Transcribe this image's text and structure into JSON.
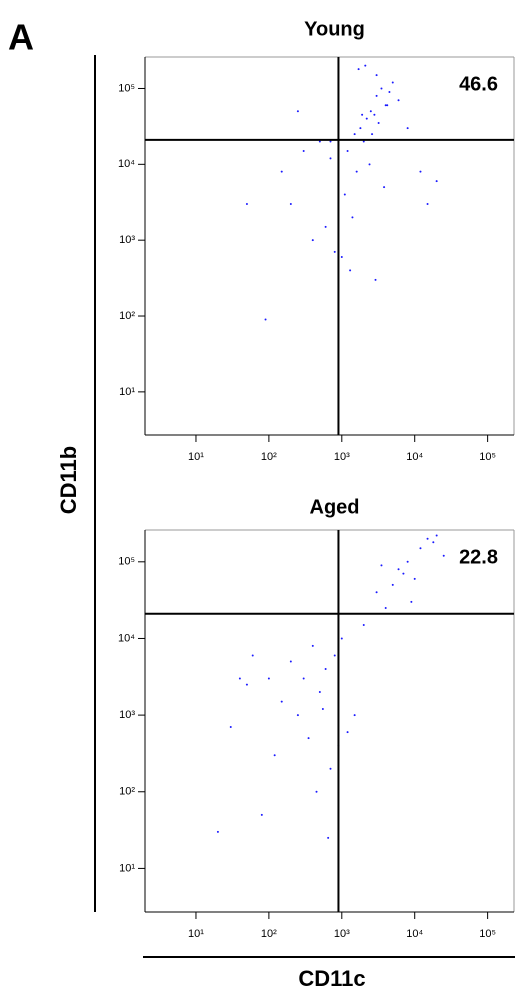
{
  "panel_label": "A",
  "y_label": "CD11b",
  "x_label": "CD11c",
  "chart_data": [
    {
      "type": "scatter",
      "title": "Young",
      "annotation": "46.6",
      "xscale": "log",
      "yscale": "log",
      "color": "#1a1aff",
      "xlim": [
        2,
        230000
      ],
      "ylim": [
        2.7,
        260000
      ],
      "xticks": [
        {
          "value": 10,
          "label": "10¹"
        },
        {
          "value": 100,
          "label": "10²"
        },
        {
          "value": 1000,
          "label": "10³"
        },
        {
          "value": 10000,
          "label": "10⁴"
        },
        {
          "value": 100000,
          "label": "10⁵"
        }
      ],
      "yticks": [
        {
          "value": 10,
          "label": "10¹"
        },
        {
          "value": 100,
          "label": "10²"
        },
        {
          "value": 1000,
          "label": "10³"
        },
        {
          "value": 10000,
          "label": "10⁴"
        },
        {
          "value": 100000,
          "label": "10⁵"
        }
      ],
      "gate": {
        "x": 900,
        "y": 21000
      },
      "x": [
        2500,
        3000,
        1800,
        4000,
        2200,
        3500,
        5000,
        1500,
        2800,
        6000,
        1200,
        2000,
        3200,
        4500,
        900,
        700,
        1600,
        2400,
        3800,
        8000,
        500,
        300,
        1100,
        2600,
        1400,
        600,
        200,
        150,
        400,
        1000,
        12000,
        20000,
        3000,
        1700,
        2100,
        50,
        90,
        800,
        1300,
        2900,
        4200,
        700,
        1900,
        250,
        15000
      ],
      "y": [
        50000,
        80000,
        30000,
        60000,
        40000,
        100000,
        120000,
        25000,
        45000,
        70000,
        15000,
        20000,
        35000,
        90000,
        18000,
        12000,
        8000,
        10000,
        5000,
        30000,
        20000,
        15000,
        4000,
        25000,
        2000,
        1500,
        3000,
        8000,
        1000,
        600,
        8000,
        6000,
        150000,
        180000,
        200000,
        3000,
        90,
        700,
        400,
        300,
        60000,
        20000,
        45000,
        50000,
        3000
      ]
    },
    {
      "type": "scatter",
      "title": "Aged",
      "annotation": "22.8",
      "xscale": "log",
      "yscale": "log",
      "color": "#1a1aff",
      "xlim": [
        2,
        230000
      ],
      "ylim": [
        2.7,
        260000
      ],
      "xticks": [
        {
          "value": 10,
          "label": "10¹"
        },
        {
          "value": 100,
          "label": "10²"
        },
        {
          "value": 1000,
          "label": "10³"
        },
        {
          "value": 10000,
          "label": "10⁴"
        },
        {
          "value": 100000,
          "label": "10⁵"
        }
      ],
      "yticks": [
        {
          "value": 10,
          "label": "10¹"
        },
        {
          "value": 100,
          "label": "10²"
        },
        {
          "value": 1000,
          "label": "10³"
        },
        {
          "value": 10000,
          "label": "10⁴"
        },
        {
          "value": 100000,
          "label": "10⁵"
        }
      ],
      "gate": {
        "x": 900,
        "y": 21000
      },
      "x": [
        8000,
        12000,
        15000,
        20000,
        10000,
        5000,
        6000,
        25000,
        3000,
        18000,
        9000,
        4000,
        7000,
        2000,
        300,
        200,
        500,
        400,
        150,
        800,
        600,
        100,
        250,
        1000,
        350,
        700,
        50,
        30,
        60,
        1500,
        120,
        450,
        900,
        80,
        20,
        550,
        40,
        3500,
        1200,
        650
      ],
      "y": [
        100000,
        150000,
        200000,
        220000,
        60000,
        50000,
        80000,
        120000,
        40000,
        180000,
        30000,
        25000,
        70000,
        15000,
        3000,
        5000,
        2000,
        8000,
        1500,
        6000,
        4000,
        3000,
        1000,
        10000,
        500,
        200,
        2500,
        700,
        6000,
        1000,
        300,
        100,
        400,
        50,
        30,
        1200,
        3000,
        90000,
        600,
        25
      ]
    }
  ]
}
